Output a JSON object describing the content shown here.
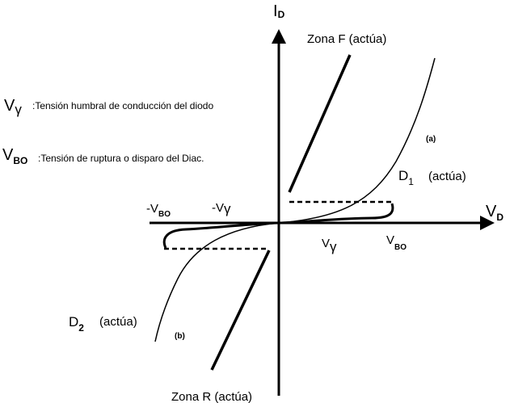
{
  "axes": {
    "y_symbol": "I",
    "y_subscript": "D",
    "x_symbol": "V",
    "x_subscript": "D"
  },
  "legend": [
    {
      "symbol": "V",
      "subscript": "γ",
      "text": ":Tensión humbral de conducción del diodo"
    },
    {
      "symbol": "V",
      "subscript": "BO",
      "text": ":Tensión de ruptura o disparo del Diac."
    }
  ],
  "zones": {
    "forward": "Zona F (actúa)",
    "reverse": "Zona R (actúa)"
  },
  "curves": {
    "a_tag": "(a)",
    "b_tag": "(b)",
    "d1": {
      "symbol": "D",
      "index": "1",
      "note": "(actúa)"
    },
    "d2": {
      "symbol": "D",
      "index": "2",
      "note": "(actúa)"
    }
  },
  "axis_marks": {
    "neg_vbo": {
      "prefix": "-V",
      "sub": "BO"
    },
    "neg_vgamma": {
      "prefix": "-V",
      "sub": "γ"
    },
    "vgamma": {
      "prefix": "V",
      "sub": "γ"
    },
    "vbo": {
      "prefix": "V",
      "sub": "BO"
    }
  },
  "colors": {
    "ink": "#000000",
    "background": "#ffffff"
  }
}
